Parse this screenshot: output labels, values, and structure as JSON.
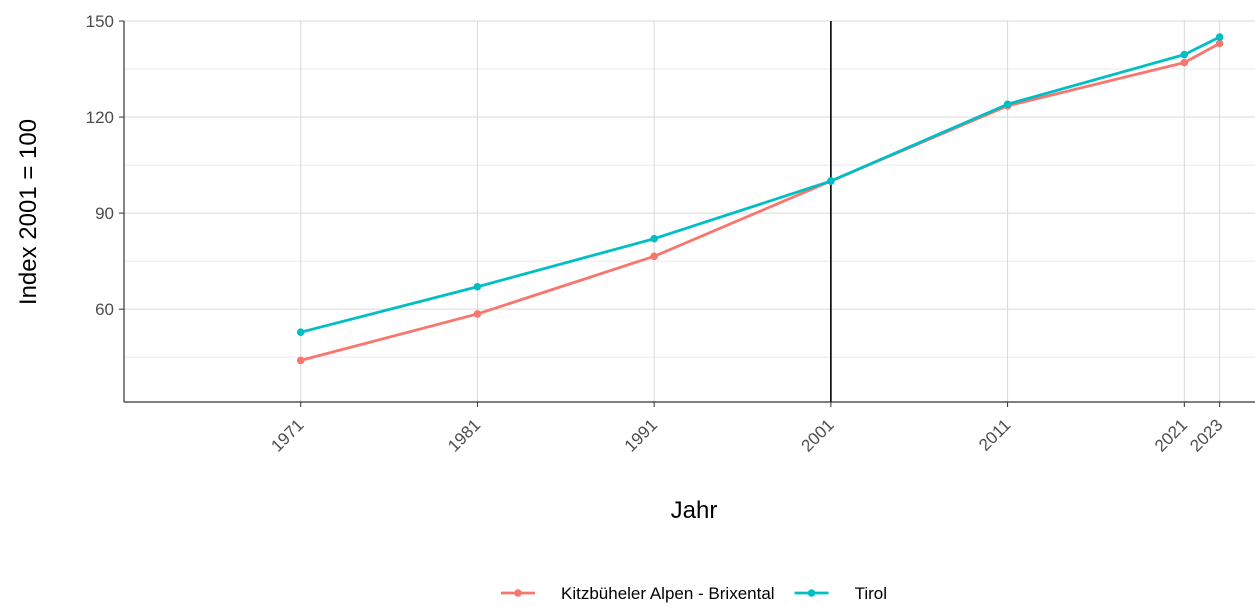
{
  "chart_data": {
    "type": "line",
    "title": "",
    "xlabel": "Jahr",
    "ylabel": "Index 2001 = 100",
    "x": [
      1971,
      1981,
      1991,
      2001,
      2011,
      2021,
      2023
    ],
    "x_tick_labels": [
      "1971",
      "1981",
      "1991",
      "2001",
      "2011",
      "2021",
      "2023"
    ],
    "y_ticks": [
      60,
      90,
      120,
      150
    ],
    "y_tick_labels": [
      "60",
      "90",
      "120",
      "150"
    ],
    "xlim": [
      1961,
      2025
    ],
    "ylim": [
      31,
      150
    ],
    "grid": true,
    "reference_line_x": 2001,
    "legend_position": "bottom",
    "series": [
      {
        "name": "Kitzbüheler Alpen - Brixental",
        "color": "#F8766D",
        "values": [
          44,
          58.5,
          76.5,
          100,
          123.5,
          137,
          143
        ]
      },
      {
        "name": "Tirol",
        "color": "#00BFC4",
        "values": [
          52.8,
          67,
          82,
          100,
          124,
          139.5,
          145
        ]
      }
    ]
  }
}
